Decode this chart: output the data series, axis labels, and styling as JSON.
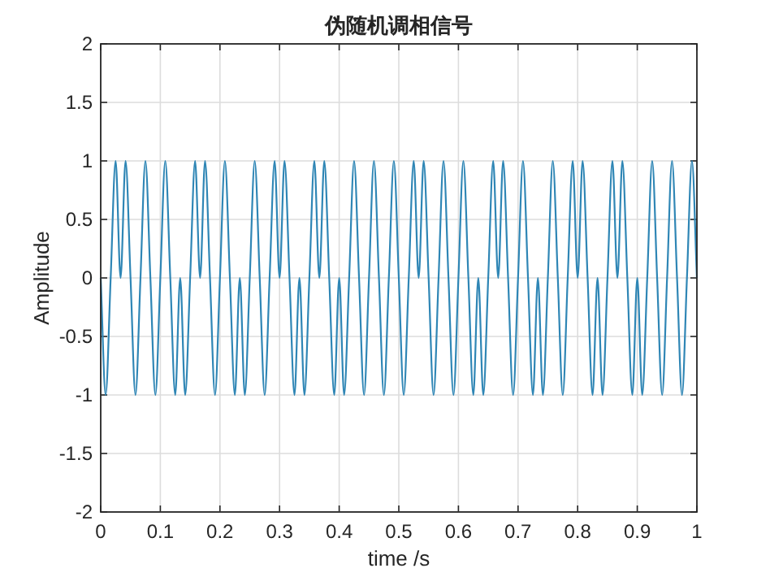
{
  "chart_data": {
    "type": "line",
    "title": "伪随机调相信号",
    "xlabel": "time /s",
    "ylabel": "Amplitude",
    "xlim": [
      0,
      1
    ],
    "ylim": [
      -2,
      2
    ],
    "xticks": [
      0,
      0.1,
      0.2,
      0.3,
      0.4,
      0.5,
      0.6,
      0.7,
      0.8,
      0.9,
      1
    ],
    "yticks": [
      -2,
      -1.5,
      -1,
      -0.5,
      0,
      0.5,
      1,
      1.5,
      2
    ],
    "grid": true,
    "line_style": "solid",
    "marker": "none",
    "x": [
      0,
      0.0083,
      0.0167,
      0.025,
      0.0333,
      0.0417,
      0.05,
      0.0583,
      0.0667,
      0.075,
      0.0833,
      0.0917,
      0.1,
      0.1083,
      0.1167,
      0.125,
      0.1333,
      0.1417,
      0.15,
      0.1583,
      0.1667,
      0.175,
      0.1833,
      0.1917,
      0.2,
      0.2083,
      0.2167,
      0.225,
      0.2333,
      0.2417,
      0.25,
      0.2583,
      0.2667,
      0.275,
      0.2833,
      0.2917,
      0.3,
      0.3083,
      0.3167,
      0.325,
      0.3333,
      0.3417,
      0.35,
      0.3583,
      0.3667,
      0.375,
      0.3833,
      0.3917,
      0.4,
      0.4083,
      0.4167,
      0.425,
      0.4333,
      0.4417,
      0.45,
      0.4583,
      0.4667,
      0.475,
      0.4833,
      0.4917,
      0.5,
      0.5083,
      0.5167,
      0.525,
      0.5333,
      0.5417,
      0.55,
      0.5583,
      0.5667,
      0.575,
      0.5833,
      0.5917,
      0.6,
      0.6083,
      0.6167,
      0.625,
      0.6333,
      0.6417,
      0.65,
      0.6583,
      0.6667,
      0.675,
      0.6833,
      0.6917,
      0.7,
      0.7083,
      0.7167,
      0.725,
      0.7333,
      0.7417,
      0.75,
      0.7583,
      0.7667,
      0.775,
      0.7833,
      0.7917,
      0.8,
      0.8083,
      0.8167,
      0.825,
      0.8333,
      0.8417,
      0.85,
      0.8583,
      0.8667,
      0.875,
      0.8833,
      0.8917,
      0.9,
      0.9083,
      0.9167,
      0.925,
      0.9333,
      0.9417,
      0.95,
      0.9583,
      0.9667,
      0.975,
      0.9833,
      0.9917,
      1
    ],
    "series": [
      {
        "color": "#2f86b5",
        "values": [
          0,
          -1,
          0,
          1,
          0,
          1,
          0,
          -1,
          0,
          1,
          0,
          -1,
          0,
          1,
          0,
          -1,
          0,
          -1,
          0,
          1,
          0,
          1,
          0,
          -1,
          0,
          1,
          0,
          -1,
          0,
          -1,
          0,
          1,
          0,
          -1,
          0,
          1,
          0,
          1,
          0,
          -1,
          0,
          -1,
          0,
          1,
          0,
          1,
          0,
          -1,
          0,
          -1,
          0,
          1,
          0,
          -1,
          0,
          1,
          0,
          -1,
          0,
          1,
          0,
          -1,
          0,
          1,
          0,
          1,
          0,
          -1,
          0,
          1,
          0,
          -1,
          0,
          1,
          0,
          -1,
          0,
          -1,
          0,
          1,
          0,
          1,
          0,
          -1,
          0,
          1,
          0,
          -1,
          0,
          -1,
          0,
          1,
          0,
          -1,
          0,
          1,
          0,
          1,
          0,
          -1,
          0,
          -1,
          0,
          1,
          0,
          1,
          0,
          -1,
          0,
          -1,
          0,
          1,
          0,
          -1,
          0,
          1,
          0,
          -1,
          0,
          1,
          0
        ]
      }
    ]
  }
}
